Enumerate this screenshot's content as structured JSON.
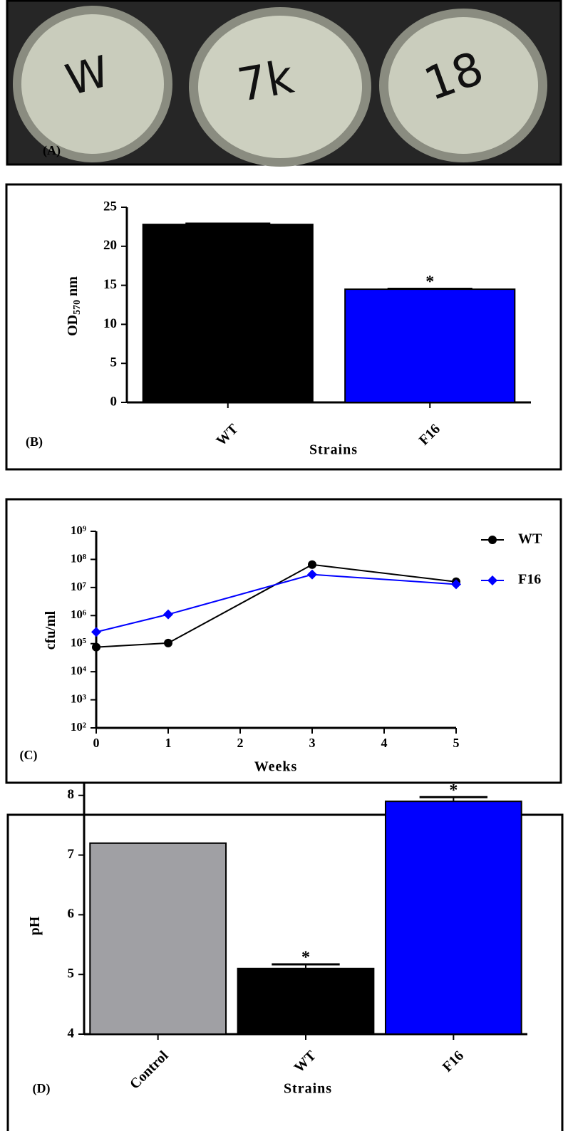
{
  "photo": {
    "label": "(A)",
    "plate_labels": [
      "W",
      "7k",
      "18"
    ]
  },
  "chart_data": [
    {
      "type": "bar",
      "panel_label": "(B)",
      "x_label": "Strains",
      "y_label": "OD",
      "y_label_sub": "570",
      "y_label_unit": "nm",
      "categories": [
        "WT",
        "F16"
      ],
      "values": [
        22.8,
        14.5
      ],
      "errors": [
        0.1,
        0.05
      ],
      "colors": [
        "#000000",
        "#0000ff"
      ],
      "significance": [
        null,
        "*"
      ],
      "ylim": [
        0,
        25
      ],
      "yticks": [
        0,
        5,
        10,
        15,
        20,
        25
      ]
    },
    {
      "type": "line",
      "panel_label": "(C)",
      "x_label": "Weeks",
      "y_label": "cfu/ml",
      "log_y": true,
      "x": [
        0,
        1,
        3,
        5
      ],
      "series": [
        {
          "name": "WT",
          "color": "#000000",
          "marker": "circle",
          "values": [
            75000,
            105000,
            65000000,
            16000000
          ]
        },
        {
          "name": "F16",
          "color": "#0000ff",
          "marker": "diamond",
          "values": [
            260000,
            1100000,
            29000000,
            13000000
          ]
        }
      ],
      "xlim": [
        0,
        5
      ],
      "xticks": [
        0,
        1,
        2,
        3,
        4,
        5
      ],
      "ylim": [
        100,
        1000000000
      ],
      "yticks": [
        {
          "value": 100,
          "label": "10²"
        },
        {
          "value": 1000,
          "label": "10³"
        },
        {
          "value": 10000,
          "label": "10⁴"
        },
        {
          "value": 100000,
          "label": "10⁵"
        },
        {
          "value": 1000000,
          "label": "10⁶"
        },
        {
          "value": 10000000,
          "label": "10⁷"
        },
        {
          "value": 100000000,
          "label": "10⁸"
        },
        {
          "value": 1000000000,
          "label": "10⁹"
        }
      ]
    },
    {
      "type": "bar",
      "panel_label": "(D)",
      "x_label": "Strains",
      "y_label": "pH",
      "categories": [
        "Control",
        "WT",
        "F16"
      ],
      "values": [
        7.2,
        5.1,
        7.9
      ],
      "errors": [
        0,
        0.07,
        0.07
      ],
      "colors": [
        "#a0a0a4",
        "#000000",
        "#0000ff"
      ],
      "significance": [
        null,
        "*",
        "*"
      ],
      "ylim": [
        4,
        8.2
      ],
      "yticks": [
        4,
        5,
        6,
        7,
        8
      ]
    }
  ]
}
